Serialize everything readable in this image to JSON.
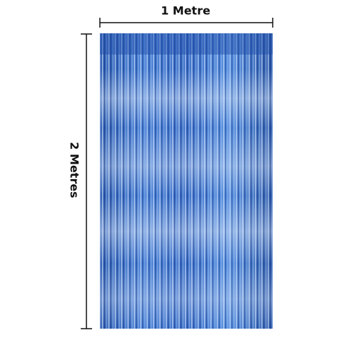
{
  "width_label": "1 Metre",
  "height_label": "2 Metres"
}
